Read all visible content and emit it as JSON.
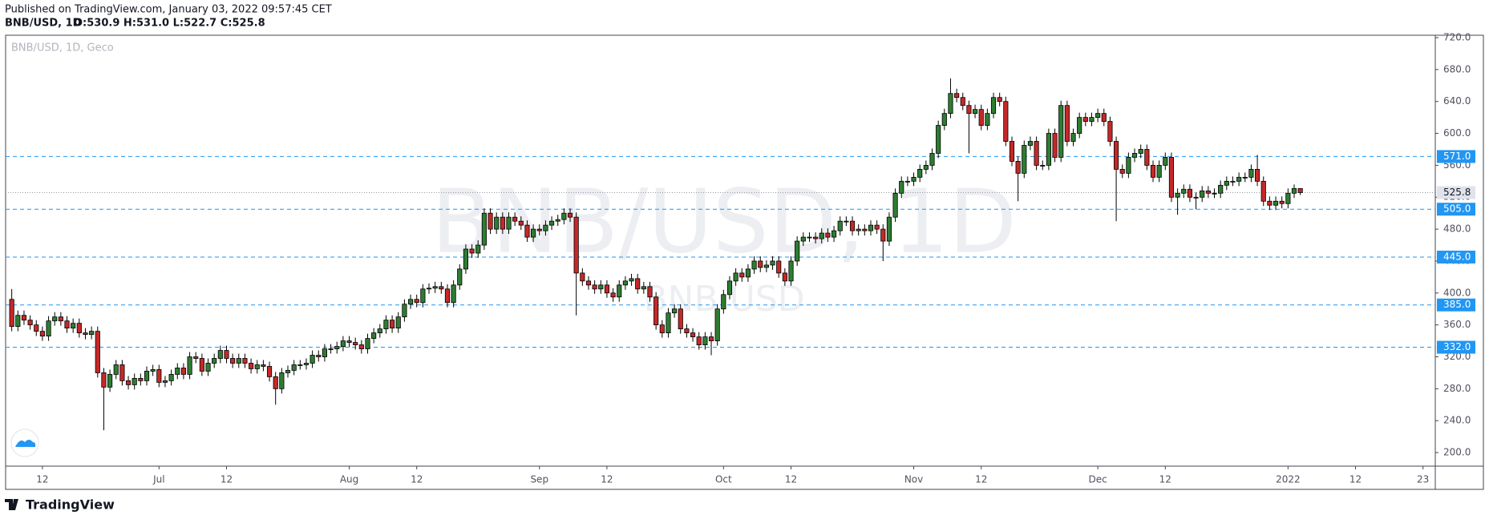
{
  "header": {
    "published": "Published on TradingView.com, January 03, 2022 09:57:45 CET",
    "symbol": "BNB/USD, 1D",
    "ohlc": "O:530.9 H:531.0 L:522.7 C:525.8"
  },
  "footer": {
    "brand": "TradingView"
  },
  "chart_data": {
    "type": "candlestick",
    "legend": "BNB/USD, 1D, Geco",
    "watermark": "BNB/USD, 1D",
    "watermark_sub": "BNB USD",
    "up_color": "#2e7d32",
    "down_color": "#c62828",
    "level_color": "#2196f3",
    "x": [
      "2021-06-07",
      "2021-06-08",
      "2021-06-09",
      "2021-06-10",
      "2021-06-11",
      "2021-06-12",
      "2021-06-13",
      "2021-06-14",
      "2021-06-15",
      "2021-06-16",
      "2021-06-17",
      "2021-06-18",
      "2021-06-19",
      "2021-06-20",
      "2021-06-21",
      "2021-06-22",
      "2021-06-23",
      "2021-06-24",
      "2021-06-25",
      "2021-06-26",
      "2021-06-27",
      "2021-06-28",
      "2021-06-29",
      "2021-06-30",
      "2021-07-01",
      "2021-07-02",
      "2021-07-03",
      "2021-07-04",
      "2021-07-05",
      "2021-07-06",
      "2021-07-07",
      "2021-07-08",
      "2021-07-09",
      "2021-07-10",
      "2021-07-11",
      "2021-07-12",
      "2021-07-13",
      "2021-07-14",
      "2021-07-15",
      "2021-07-16",
      "2021-07-17",
      "2021-07-18",
      "2021-07-19",
      "2021-07-20",
      "2021-07-21",
      "2021-07-22",
      "2021-07-23",
      "2021-07-24",
      "2021-07-25",
      "2021-07-26",
      "2021-07-27",
      "2021-07-28",
      "2021-07-29",
      "2021-07-30",
      "2021-07-31",
      "2021-08-01",
      "2021-08-02",
      "2021-08-03",
      "2021-08-04",
      "2021-08-05",
      "2021-08-06",
      "2021-08-07",
      "2021-08-08",
      "2021-08-09",
      "2021-08-10",
      "2021-08-11",
      "2021-08-12",
      "2021-08-13",
      "2021-08-14",
      "2021-08-15",
      "2021-08-16",
      "2021-08-17",
      "2021-08-18",
      "2021-08-19",
      "2021-08-20",
      "2021-08-21",
      "2021-08-22",
      "2021-08-23",
      "2021-08-24",
      "2021-08-25",
      "2021-08-26",
      "2021-08-27",
      "2021-08-28",
      "2021-08-29",
      "2021-08-30",
      "2021-08-31",
      "2021-09-01",
      "2021-09-02",
      "2021-09-03",
      "2021-09-04",
      "2021-09-05",
      "2021-09-06",
      "2021-09-07",
      "2021-09-08",
      "2021-09-09",
      "2021-09-10",
      "2021-09-11",
      "2021-09-12",
      "2021-09-13",
      "2021-09-14",
      "2021-09-15",
      "2021-09-16",
      "2021-09-17",
      "2021-09-18",
      "2021-09-19",
      "2021-09-20",
      "2021-09-21",
      "2021-09-22",
      "2021-09-23",
      "2021-09-24",
      "2021-09-25",
      "2021-09-26",
      "2021-09-27",
      "2021-09-28",
      "2021-09-29",
      "2021-09-30",
      "2021-10-01",
      "2021-10-02",
      "2021-10-03",
      "2021-10-04",
      "2021-10-05",
      "2021-10-06",
      "2021-10-07",
      "2021-10-08",
      "2021-10-09",
      "2021-10-10",
      "2021-10-11",
      "2021-10-12",
      "2021-10-13",
      "2021-10-14",
      "2021-10-15",
      "2021-10-16",
      "2021-10-17",
      "2021-10-18",
      "2021-10-19",
      "2021-10-20",
      "2021-10-21",
      "2021-10-22",
      "2021-10-23",
      "2021-10-24",
      "2021-10-25",
      "2021-10-26",
      "2021-10-27",
      "2021-10-28",
      "2021-10-29",
      "2021-10-30",
      "2021-10-31",
      "2021-11-01",
      "2021-11-02",
      "2021-11-03",
      "2021-11-04",
      "2021-11-05",
      "2021-11-06",
      "2021-11-07",
      "2021-11-08",
      "2021-11-09",
      "2021-11-10",
      "2021-11-11",
      "2021-11-12",
      "2021-11-13",
      "2021-11-14",
      "2021-11-15",
      "2021-11-16",
      "2021-11-17",
      "2021-11-18",
      "2021-11-19",
      "2021-11-20",
      "2021-11-21",
      "2021-11-22",
      "2021-11-23",
      "2021-11-24",
      "2021-11-25",
      "2021-11-26",
      "2021-11-27",
      "2021-11-28",
      "2021-11-29",
      "2021-11-30",
      "2021-12-01",
      "2021-12-02",
      "2021-12-03",
      "2021-12-04",
      "2021-12-05",
      "2021-12-06",
      "2021-12-07",
      "2021-12-08",
      "2021-12-09",
      "2021-12-10",
      "2021-12-11",
      "2021-12-12",
      "2021-12-13",
      "2021-12-14",
      "2021-12-15",
      "2021-12-16",
      "2021-12-17",
      "2021-12-18",
      "2021-12-19",
      "2021-12-20",
      "2021-12-21",
      "2021-12-22",
      "2021-12-23",
      "2021-12-24",
      "2021-12-25",
      "2021-12-26",
      "2021-12-27",
      "2021-12-28",
      "2021-12-29",
      "2021-12-30",
      "2021-12-31",
      "2022-01-01",
      "2022-01-02",
      "2022-01-03"
    ],
    "open": [
      392,
      358,
      372,
      366,
      360,
      352,
      346,
      365,
      370,
      365,
      356,
      362,
      350,
      348,
      352,
      300,
      282,
      298,
      310,
      290,
      285,
      293,
      290,
      302,
      304,
      288,
      290,
      298,
      306,
      298,
      320,
      318,
      302,
      312,
      318,
      328,
      318,
      312,
      318,
      312,
      305,
      310,
      308,
      295,
      280,
      300,
      303,
      310,
      310,
      312,
      322,
      320,
      330,
      330,
      333,
      340,
      338,
      335,
      330,
      343,
      350,
      355,
      366,
      356,
      370,
      386,
      392,
      388,
      405,
      406,
      408,
      405,
      388,
      410,
      430,
      455,
      450,
      460,
      500,
      480,
      495,
      480,
      495,
      490,
      485,
      470,
      480,
      478,
      485,
      490,
      492,
      500,
      495,
      425,
      415,
      410,
      405,
      410,
      400,
      395,
      410,
      415,
      418,
      405,
      408,
      395,
      360,
      350,
      375,
      380,
      355,
      350,
      345,
      335,
      345,
      340,
      380,
      398,
      415,
      425,
      420,
      430,
      440,
      432,
      435,
      440,
      425,
      415,
      440,
      465,
      470,
      470,
      468,
      475,
      470,
      478,
      490,
      490,
      478,
      480,
      478,
      485,
      480,
      465,
      495,
      525,
      540,
      540,
      545,
      555,
      560,
      575,
      610,
      625,
      650,
      645,
      635,
      625,
      630,
      610,
      625,
      645,
      640,
      590,
      565,
      550,
      585,
      590,
      560,
      560,
      600,
      570,
      635,
      590,
      600,
      620,
      615,
      620,
      625,
      615,
      590,
      555,
      550,
      570,
      575,
      580,
      560,
      545,
      560,
      570,
      520,
      525,
      530,
      520,
      520,
      528,
      525,
      525,
      535,
      540,
      540,
      545,
      545,
      555,
      540,
      515,
      510,
      515,
      512,
      525,
      530.9
    ],
    "high": [
      405,
      378,
      378,
      372,
      366,
      358,
      371,
      376,
      376,
      371,
      368,
      368,
      356,
      358,
      358,
      306,
      304,
      316,
      316,
      296,
      299,
      299,
      308,
      310,
      310,
      296,
      304,
      312,
      312,
      326,
      326,
      324,
      318,
      324,
      334,
      334,
      324,
      324,
      324,
      318,
      316,
      316,
      314,
      301,
      306,
      309,
      316,
      316,
      318,
      328,
      328,
      336,
      336,
      339,
      346,
      346,
      344,
      341,
      349,
      356,
      361,
      372,
      372,
      376,
      392,
      398,
      398,
      411,
      412,
      414,
      414,
      411,
      416,
      436,
      461,
      461,
      466,
      506,
      506,
      501,
      501,
      501,
      501,
      496,
      491,
      486,
      486,
      491,
      496,
      498,
      506,
      506,
      501,
      431,
      421,
      416,
      416,
      416,
      406,
      416,
      421,
      424,
      424,
      414,
      414,
      401,
      366,
      381,
      386,
      386,
      361,
      356,
      351,
      351,
      351,
      386,
      404,
      421,
      431,
      431,
      436,
      446,
      446,
      441,
      446,
      446,
      431,
      446,
      471,
      476,
      476,
      476,
      481,
      481,
      484,
      496,
      496,
      496,
      486,
      486,
      491,
      491,
      486,
      501,
      531,
      546,
      546,
      551,
      561,
      566,
      581,
      616,
      631,
      669,
      656,
      651,
      641,
      636,
      636,
      631,
      651,
      651,
      646,
      596,
      571,
      591,
      596,
      596,
      566,
      606,
      606,
      641,
      641,
      606,
      626,
      626,
      626,
      631,
      631,
      621,
      596,
      561,
      576,
      581,
      586,
      586,
      566,
      566,
      576,
      576,
      531,
      536,
      536,
      526,
      534,
      534,
      531,
      541,
      546,
      546,
      551,
      551,
      561,
      573,
      546,
      521,
      521,
      521,
      531,
      536,
      531
    ],
    "low": [
      352,
      352,
      360,
      354,
      346,
      340,
      340,
      359,
      359,
      350,
      350,
      344,
      342,
      342,
      294,
      228,
      276,
      292,
      284,
      279,
      279,
      284,
      284,
      296,
      282,
      282,
      284,
      292,
      292,
      292,
      312,
      296,
      296,
      306,
      312,
      312,
      306,
      306,
      306,
      299,
      299,
      302,
      289,
      260,
      274,
      294,
      297,
      304,
      304,
      306,
      314,
      314,
      324,
      324,
      327,
      332,
      329,
      324,
      324,
      337,
      344,
      349,
      350,
      350,
      364,
      380,
      382,
      382,
      399,
      400,
      399,
      382,
      382,
      404,
      424,
      444,
      444,
      454,
      474,
      474,
      474,
      474,
      484,
      479,
      464,
      464,
      472,
      472,
      479,
      484,
      486,
      489,
      372,
      409,
      404,
      399,
      399,
      394,
      389,
      389,
      404,
      409,
      399,
      399,
      389,
      354,
      344,
      344,
      369,
      349,
      344,
      339,
      329,
      329,
      322,
      334,
      374,
      392,
      409,
      414,
      414,
      424,
      426,
      426,
      429,
      419,
      409,
      409,
      434,
      459,
      464,
      462,
      462,
      464,
      464,
      472,
      484,
      472,
      472,
      472,
      472,
      474,
      440,
      459,
      489,
      519,
      534,
      534,
      539,
      549,
      554,
      569,
      604,
      619,
      639,
      629,
      575,
      619,
      604,
      604,
      619,
      634,
      584,
      559,
      515,
      544,
      579,
      554,
      554,
      554,
      564,
      564,
      584,
      584,
      594,
      609,
      609,
      614,
      609,
      584,
      490,
      544,
      544,
      564,
      569,
      554,
      539,
      539,
      554,
      514,
      498,
      519,
      514,
      505,
      514,
      519,
      519,
      519,
      529,
      534,
      534,
      539,
      539,
      534,
      509,
      504,
      504,
      506,
      506,
      519,
      522.7
    ],
    "close": [
      358,
      372,
      366,
      360,
      352,
      346,
      365,
      370,
      365,
      356,
      362,
      350,
      348,
      352,
      300,
      282,
      298,
      310,
      290,
      285,
      293,
      290,
      302,
      304,
      288,
      290,
      298,
      306,
      298,
      320,
      318,
      302,
      312,
      318,
      328,
      318,
      312,
      318,
      312,
      305,
      310,
      308,
      295,
      280,
      300,
      303,
      310,
      310,
      312,
      322,
      320,
      330,
      330,
      333,
      340,
      338,
      335,
      330,
      343,
      350,
      355,
      366,
      356,
      370,
      386,
      392,
      388,
      405,
      406,
      408,
      405,
      388,
      410,
      430,
      455,
      450,
      460,
      500,
      480,
      495,
      480,
      495,
      490,
      485,
      470,
      480,
      478,
      485,
      490,
      492,
      500,
      495,
      425,
      415,
      410,
      405,
      410,
      400,
      395,
      410,
      415,
      418,
      405,
      408,
      395,
      360,
      350,
      375,
      380,
      355,
      350,
      345,
      335,
      345,
      340,
      380,
      398,
      415,
      425,
      420,
      430,
      440,
      432,
      435,
      440,
      425,
      415,
      440,
      465,
      470,
      470,
      468,
      475,
      470,
      478,
      490,
      490,
      478,
      480,
      478,
      485,
      480,
      465,
      495,
      525,
      540,
      540,
      545,
      555,
      560,
      575,
      610,
      625,
      650,
      645,
      635,
      625,
      630,
      610,
      625,
      645,
      640,
      590,
      565,
      550,
      585,
      590,
      560,
      560,
      600,
      570,
      635,
      590,
      600,
      620,
      615,
      620,
      625,
      615,
      590,
      555,
      550,
      570,
      575,
      580,
      560,
      545,
      560,
      570,
      520,
      525,
      530,
      520,
      520,
      528,
      525,
      525,
      535,
      540,
      540,
      545,
      545,
      555,
      540,
      515,
      510,
      515,
      512,
      525,
      530.9,
      525.8
    ],
    "xlim": [
      "2021-06-06",
      "2022-01-25"
    ],
    "xticks": [
      {
        "value": "2021-06-12",
        "label": "12"
      },
      {
        "value": "2021-07-01",
        "label": "Jul"
      },
      {
        "value": "2021-07-12",
        "label": "12"
      },
      {
        "value": "2021-08-01",
        "label": "Aug"
      },
      {
        "value": "2021-08-12",
        "label": "12"
      },
      {
        "value": "2021-09-01",
        "label": "Sep"
      },
      {
        "value": "2021-09-12",
        "label": "12"
      },
      {
        "value": "2021-10-01",
        "label": "Oct"
      },
      {
        "value": "2021-10-12",
        "label": "12"
      },
      {
        "value": "2021-11-01",
        "label": "Nov"
      },
      {
        "value": "2021-11-12",
        "label": "12"
      },
      {
        "value": "2021-12-01",
        "label": "Dec"
      },
      {
        "value": "2021-12-12",
        "label": "12"
      },
      {
        "value": "2022-01-01",
        "label": "2022"
      },
      {
        "value": "2022-01-12",
        "label": "12"
      },
      {
        "value": "2022-01-23",
        "label": "23"
      }
    ],
    "ylim": [
      183,
      723
    ],
    "yticks": [
      {
        "value": 200,
        "label": "200.0"
      },
      {
        "value": 240,
        "label": "240.0"
      },
      {
        "value": 280,
        "label": "280.0"
      },
      {
        "value": 320,
        "label": "320.0"
      },
      {
        "value": 360,
        "label": "360.0"
      },
      {
        "value": 400,
        "label": "400.0"
      },
      {
        "value": 440,
        "label": "440.0"
      },
      {
        "value": 480,
        "label": "480.0"
      },
      {
        "value": 520,
        "label": "520.0"
      },
      {
        "value": 560,
        "label": "560.0"
      },
      {
        "value": 600,
        "label": "600.0"
      },
      {
        "value": 640,
        "label": "640.0"
      },
      {
        "value": 680,
        "label": "680.0"
      },
      {
        "value": 720,
        "label": "720.0"
      }
    ],
    "levels": [
      {
        "value": 571,
        "label": "571.0"
      },
      {
        "value": 505,
        "label": "505.0"
      },
      {
        "value": 445,
        "label": "445.0"
      },
      {
        "value": 385,
        "label": "385.0"
      },
      {
        "value": 332,
        "label": "332.0"
      }
    ],
    "last_price": {
      "value": 525.8,
      "label": "525.8"
    }
  }
}
